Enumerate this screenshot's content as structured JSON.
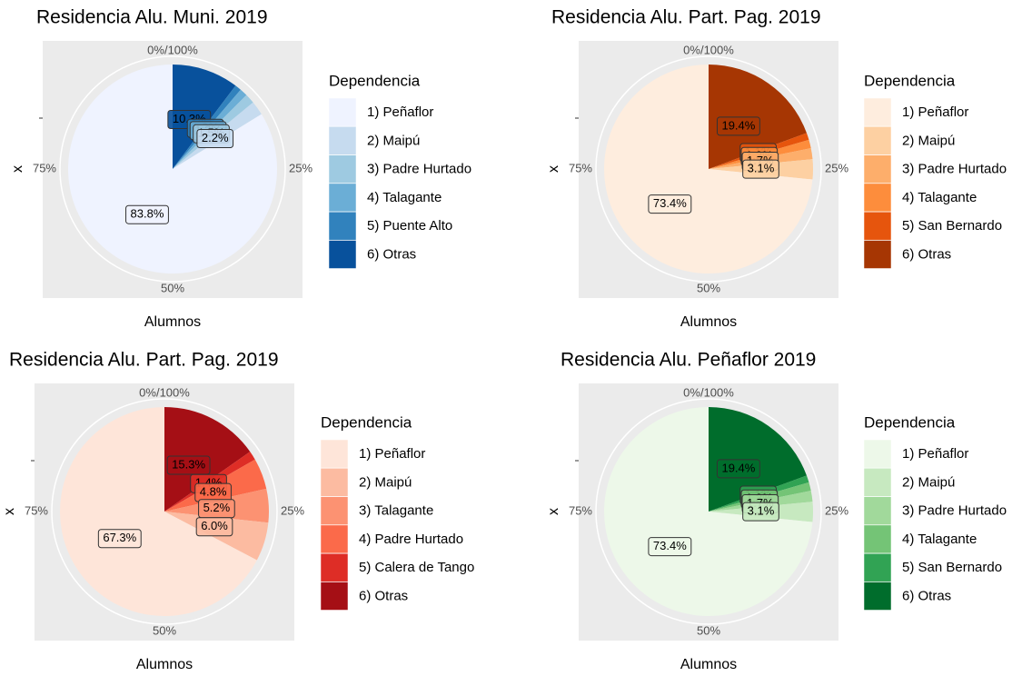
{
  "chart_data": [
    {
      "type": "pie",
      "title": "Residencia Alu. Muni. 2019",
      "x_label": "Alumnos",
      "y_label": "x",
      "legend_title": "Dependencia",
      "categories": [
        "1) Peñaflor",
        "2) Maipú",
        "3) Padre Hurtado",
        "4) Talagante",
        "5) Puente Alto",
        "6) Otras"
      ],
      "values": [
        83.8,
        2.2,
        1.5,
        1.2,
        1.0,
        10.3
      ],
      "value_labels": [
        "83.8%",
        "2.2%",
        "1.5%",
        "1.2%",
        "1.0%",
        "10.3%"
      ],
      "colors": [
        "#eff3ff",
        "#c6dbef",
        "#9ecae1",
        "#6baed6",
        "#3182bd",
        "#08519c"
      ],
      "ticks": [
        {
          "value": 0,
          "label": "0%/100%"
        },
        {
          "value": 25,
          "label": "25%"
        },
        {
          "value": 50,
          "label": "50%"
        },
        {
          "value": 75,
          "label": "75%"
        }
      ]
    },
    {
      "type": "pie",
      "title": "Residencia Alu. Part. Pag. 2019",
      "x_label": "Alumnos",
      "y_label": "x",
      "legend_title": "Dependencia",
      "categories": [
        "1) Peñaflor",
        "2) Maipú",
        "3) Padre Hurtado",
        "4) Talagante",
        "5) San Bernardo",
        "6) Otras"
      ],
      "values": [
        73.4,
        3.1,
        1.7,
        1.3,
        1.1,
        19.4
      ],
      "value_labels": [
        "73.4%",
        "3.1%",
        "1.7%",
        "1.3%",
        "1.1%",
        "19.4%"
      ],
      "colors": [
        "#feedde",
        "#fdd0a2",
        "#fdae6b",
        "#fd8d3c",
        "#e6550d",
        "#a63603"
      ],
      "ticks": [
        {
          "value": 0,
          "label": "0%/100%"
        },
        {
          "value": 25,
          "label": "25%"
        },
        {
          "value": 50,
          "label": "50%"
        },
        {
          "value": 75,
          "label": "75%"
        }
      ]
    },
    {
      "type": "pie",
      "title": "Residencia Alu. Part. Pag. 2019",
      "x_label": "Alumnos",
      "y_label": "x",
      "legend_title": "Dependencia",
      "categories": [
        "1) Peñaflor",
        "2) Maipú",
        "3) Talagante",
        "4) Padre Hurtado",
        "5) Calera de Tango",
        "6) Otras"
      ],
      "values": [
        67.3,
        6.0,
        5.2,
        4.8,
        1.4,
        15.3
      ],
      "value_labels": [
        "67.3%",
        "6.0%",
        "5.2%",
        "4.8%",
        "1.4%",
        "15.3%"
      ],
      "colors": [
        "#fee5d9",
        "#fcbba1",
        "#fc9272",
        "#fb6a4a",
        "#de2d26",
        "#a50f15"
      ],
      "ticks": [
        {
          "value": 0,
          "label": "0%/100%"
        },
        {
          "value": 25,
          "label": "25%"
        },
        {
          "value": 50,
          "label": "50%"
        },
        {
          "value": 75,
          "label": "75%"
        }
      ]
    },
    {
      "type": "pie",
      "title": "Residencia Alu. Peñaflor 2019",
      "x_label": "Alumnos",
      "y_label": "x",
      "legend_title": "Dependencia",
      "categories": [
        "1) Peñaflor",
        "2) Maipú",
        "3) Padre Hurtado",
        "4) Talagante",
        "5) San Bernardo",
        "6) Otras"
      ],
      "values": [
        73.4,
        3.1,
        1.7,
        1.3,
        1.1,
        19.4
      ],
      "value_labels": [
        "73.4%",
        "3.1%",
        "1.7%",
        "1.3%",
        "1.1%",
        "19.4%"
      ],
      "colors": [
        "#edf8e9",
        "#c7e9c0",
        "#a1d99b",
        "#74c476",
        "#31a354",
        "#006d2c"
      ],
      "ticks": [
        {
          "value": 0,
          "label": "0%/100%"
        },
        {
          "value": 25,
          "label": "25%"
        },
        {
          "value": 50,
          "label": "50%"
        },
        {
          "value": 75,
          "label": "75%"
        }
      ]
    }
  ]
}
